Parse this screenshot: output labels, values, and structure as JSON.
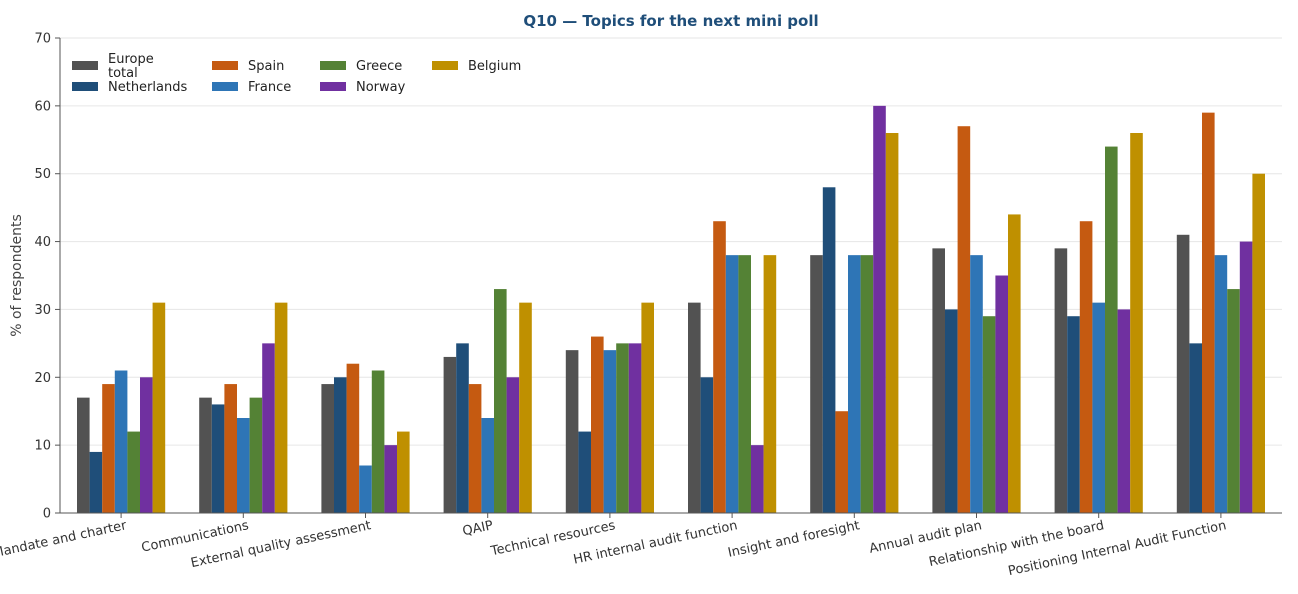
{
  "chart_data": {
    "type": "bar",
    "title": "Q10 — Topics for the next mini poll",
    "title_color": "#1f4e79",
    "xlabel": "",
    "ylabel": "% of respondents",
    "ylim": [
      0,
      70
    ],
    "yticks": [
      0,
      10,
      20,
      30,
      40,
      50,
      60,
      70
    ],
    "grid": "horizontal",
    "legend_position": "top-left",
    "categories": [
      "Mandate and charter",
      "Communications",
      "External quality assessment",
      "QAIP",
      "Technical resources",
      "HR internal audit function",
      "Insight and foresight",
      "Annual audit plan",
      "Relationship with the board",
      "Positioning Internal Audit Function"
    ],
    "series": [
      {
        "name": "Europe total",
        "color": "#525252",
        "values": [
          17,
          17,
          19,
          23,
          24,
          31,
          38,
          39,
          39,
          41
        ]
      },
      {
        "name": "Netherlands",
        "color": "#1f4e79",
        "values": [
          9,
          16,
          20,
          25,
          12,
          20,
          48,
          30,
          29,
          25
        ]
      },
      {
        "name": "Spain",
        "color": "#c55a11",
        "values": [
          19,
          19,
          22,
          19,
          26,
          43,
          15,
          57,
          43,
          59
        ]
      },
      {
        "name": "France",
        "color": "#2e75b6",
        "values": [
          21,
          14,
          7,
          14,
          24,
          38,
          38,
          38,
          31,
          38
        ]
      },
      {
        "name": "Greece",
        "color": "#548235",
        "values": [
          12,
          17,
          21,
          33,
          25,
          38,
          38,
          29,
          54,
          33
        ]
      },
      {
        "name": "Norway",
        "color": "#7030a0",
        "values": [
          20,
          25,
          10,
          20,
          25,
          10,
          60,
          35,
          30,
          40
        ]
      },
      {
        "name": "Belgium",
        "color": "#bf9000",
        "values": [
          31,
          31,
          12,
          31,
          31,
          38,
          56,
          44,
          56,
          50
        ]
      }
    ]
  }
}
